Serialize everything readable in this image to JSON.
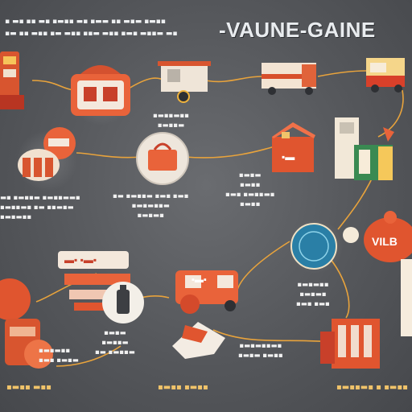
{
  "title": "-VAUNE-GAINE",
  "header": {
    "line1": "▪︎ ▬▪ ▪▪ ▬▪ ▪▬▪▪ ▬▪ ▪▬▬ ▪▪ ▬▪▬ ▪▬▪▪",
    "line2": "▪▬ ▪▪ ▬▪▪ ▪▬ ▬▪▪ ▪▪▬ ▬▪▪ ▪▬▪ ▬▪▪▬ ▬▪"
  },
  "labels": {
    "center_top": "▪▬▪▪▬▪▪\n▪▬▪▪▬",
    "left_mid": "▬▪ ▪▬▪▪▬ ▪▬▪▪▬▬▪\n▪▬▪▪▬▪ ▪▬ ▪▪▬▪▬\n▪▬▪▬▪▪",
    "center_mid": "▪▬ ▪▬▪▪▬ ▪▬▪ ▪▬▪\n▪▬▪▬▪▪▬\n▪▬▪▬▪",
    "right_mid": "▪▬▪▬\n▪▬▪▪\n▪▬▪ ▪▬▪▪▬▪\n▪▬▪▪",
    "right_low": "▪▬▪▬▪▪\n▪▬▪▬▪\n▪▬▪ ▪▬▪",
    "center_low": "▪▬▪▬\n▪▬▪▪▬\n▪▬ ▪▬▪▪▬",
    "left_low": "▪▬▪▬▪▪\n▪▬▪ ▪▬▪▬",
    "mid_bottom": "▪▬▪▬▪▪▬▪\n▪▬▪▬ ▪▬▪▪"
  },
  "footer": {
    "left": "▪▬▪▪ ▬▪▪",
    "center": "▪▬▪▪ ▪▬▪▪",
    "right": "▪▬▪▪▬▪ ▪ ▪▬▪▪"
  },
  "sign_text": "▬▪ ▪▬▪",
  "truck_text": "▪▬▪",
  "box_text": "▪▬",
  "badge_text": "VILB",
  "colors": {
    "background": "#55575b",
    "accent_orange": "#e0633a",
    "accent_red": "#c8402a",
    "connector": "#e8a33c",
    "title": "#e9ecef"
  }
}
